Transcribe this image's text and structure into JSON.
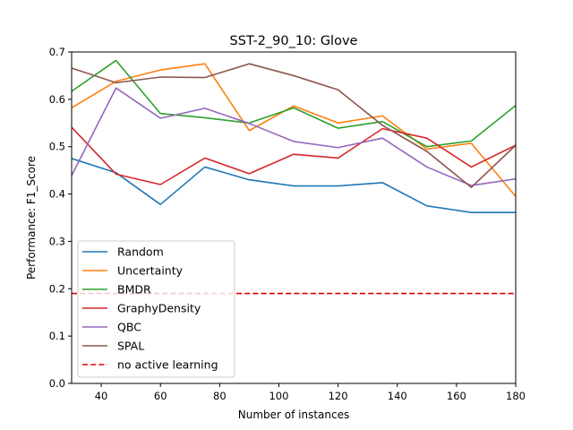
{
  "chart_data": {
    "type": "line",
    "title": "SST-2_90_10: Glove",
    "xlabel": "Number of instances",
    "ylabel": "Performance: F1_Score",
    "xlim": [
      30,
      180
    ],
    "ylim": [
      0.0,
      0.7
    ],
    "xticks": [
      40,
      60,
      80,
      100,
      120,
      140,
      160,
      180
    ],
    "yticks": [
      0.0,
      0.1,
      0.2,
      0.3,
      0.4,
      0.5,
      0.6,
      0.7
    ],
    "grid": false,
    "legend_position": "lower-left",
    "x": [
      30,
      45,
      60,
      75,
      90,
      105,
      120,
      135,
      150,
      165,
      180
    ],
    "series": [
      {
        "name": "Random",
        "color": "#1f77b4",
        "style": "solid",
        "values": [
          0.475,
          0.445,
          0.378,
          0.457,
          0.43,
          0.417,
          0.417,
          0.424,
          0.375,
          0.361,
          0.361
        ]
      },
      {
        "name": "Uncertainty",
        "color": "#ff7f0e",
        "style": "solid",
        "values": [
          0.582,
          0.638,
          0.662,
          0.675,
          0.534,
          0.586,
          0.55,
          0.565,
          0.495,
          0.507,
          0.395
        ]
      },
      {
        "name": "BMDR",
        "color": "#2ca02c",
        "style": "solid",
        "values": [
          0.617,
          0.682,
          0.57,
          0.561,
          0.55,
          0.582,
          0.539,
          0.553,
          0.5,
          0.512,
          0.587
        ]
      },
      {
        "name": "GraphyDensity",
        "color": "#d62728",
        "style": "solid",
        "values": [
          0.541,
          0.442,
          0.42,
          0.476,
          0.443,
          0.484,
          0.476,
          0.538,
          0.518,
          0.457,
          0.503
        ]
      },
      {
        "name": "QBC",
        "color": "#9467bd",
        "style": "solid",
        "values": [
          0.439,
          0.624,
          0.56,
          0.581,
          0.549,
          0.511,
          0.498,
          0.518,
          0.457,
          0.418,
          0.432
        ]
      },
      {
        "name": "SPAL",
        "color": "#8c564b",
        "style": "solid",
        "values": [
          0.666,
          0.635,
          0.647,
          0.646,
          0.675,
          0.65,
          0.62,
          0.545,
          0.49,
          0.414,
          0.503
        ]
      },
      {
        "name": "no active learning",
        "color": "#dd0000",
        "style": "dashed",
        "values": [
          0.19,
          0.19,
          0.19,
          0.19,
          0.19,
          0.19,
          0.19,
          0.19,
          0.19,
          0.19,
          0.19
        ]
      }
    ]
  }
}
